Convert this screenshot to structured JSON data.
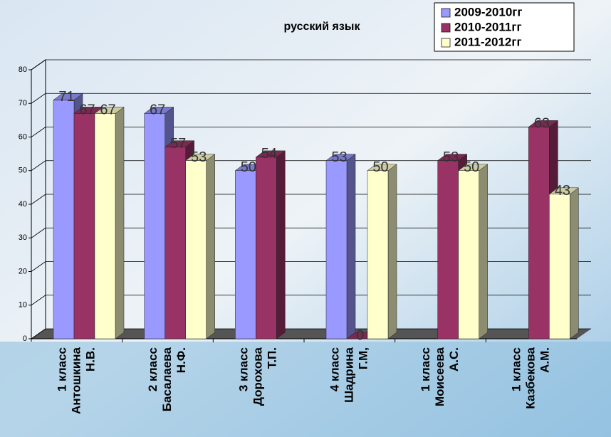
{
  "chart_data": {
    "type": "bar3d",
    "title": "русский язык",
    "categories": [
      [
        "1 класс",
        "Антошкина",
        "Н.В."
      ],
      [
        "2 класс",
        "Басалаева",
        "Н.Ф."
      ],
      [
        "3 класс",
        "Дорохова",
        "Т.П."
      ],
      [
        "4 класс",
        "Шадрина",
        "Г.М,"
      ],
      [
        "1 класс",
        "Моисеева",
        "А.С."
      ],
      [
        "1 класс",
        "Казбекова",
        "А.М."
      ]
    ],
    "series": [
      {
        "name": "2009-2010гг",
        "color": "#9999ff",
        "values": [
          71,
          67,
          50,
          53,
          null,
          null
        ]
      },
      {
        "name": "2010-2011гг",
        "color": "#993366",
        "values": [
          67,
          57,
          54,
          0,
          53,
          63
        ]
      },
      {
        "name": "2011-2012гг",
        "color": "#ffffcc",
        "values": [
          67,
          53,
          null,
          50,
          50,
          43
        ]
      }
    ],
    "ylim": [
      0,
      80
    ],
    "yticks": [
      0,
      10,
      20,
      30,
      40,
      50,
      60,
      70,
      80
    ],
    "grid": true,
    "legend": "top-right"
  }
}
